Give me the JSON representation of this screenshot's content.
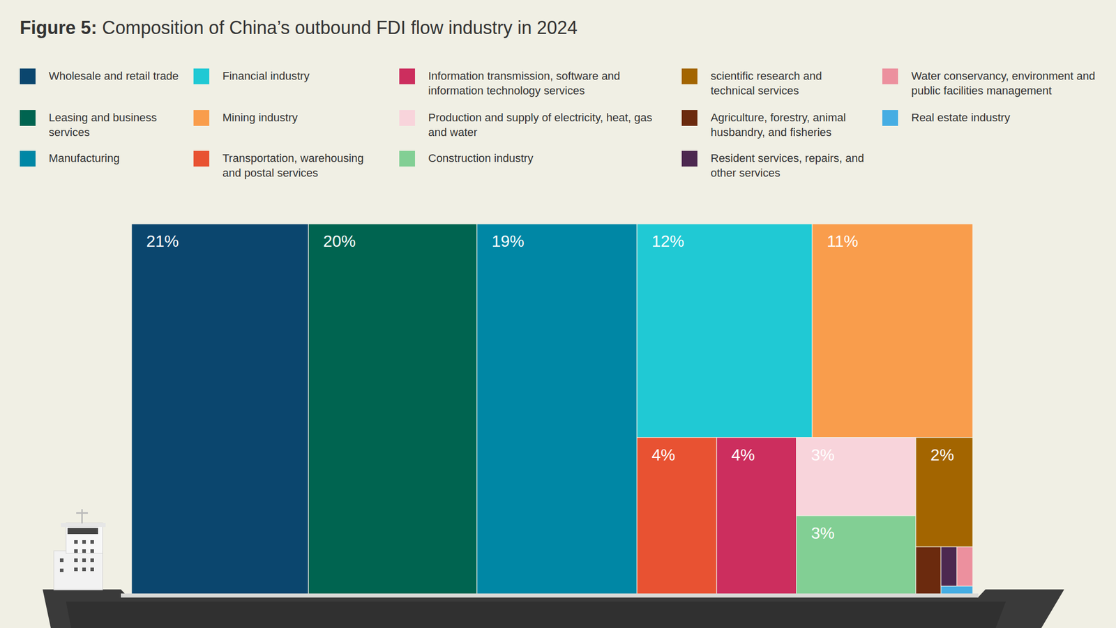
{
  "chart_data": {
    "type": "treemap",
    "title": "Figure 5: Composition of China’s outbound FDI flow industry in 2024",
    "categories": [
      "Wholesale and retail trade",
      "Leasing and business services",
      "Manufacturing",
      "Financial industry",
      "Mining industry",
      "Transportation, warehousing and postal services",
      "Information transmission, software and information technology services",
      "Production and supply of electricity, heat, gas and water",
      "Construction industry",
      "scientific research and technical services",
      "Agriculture, forestry, animal husbandry, and fisheries",
      "Resident services, repairs, and other services",
      "Water conservancy, environment and public facilities management",
      "Real estate industry"
    ],
    "values": [
      21,
      20,
      19,
      12,
      11,
      4,
      4,
      3,
      3,
      2,
      0.38,
      0.2,
      0.2,
      0.08
    ],
    "value_labels": [
      "21%",
      "20%",
      "19%",
      "12%",
      "11%",
      "4%",
      "4%",
      "3%",
      "3%",
      "2%",
      null,
      null,
      null,
      null
    ],
    "colors": [
      "#0b466e",
      "#006450",
      "#0087a5",
      "#20c9d4",
      "#f99d4c",
      "#e85232",
      "#cc2e5e",
      "#f8d4db",
      "#82cf94",
      "#a36500",
      "#6b2a0e",
      "#4c2850",
      "#ec909e",
      "#45ade3"
    ],
    "data_labels": true,
    "legend": "top"
  }
}
